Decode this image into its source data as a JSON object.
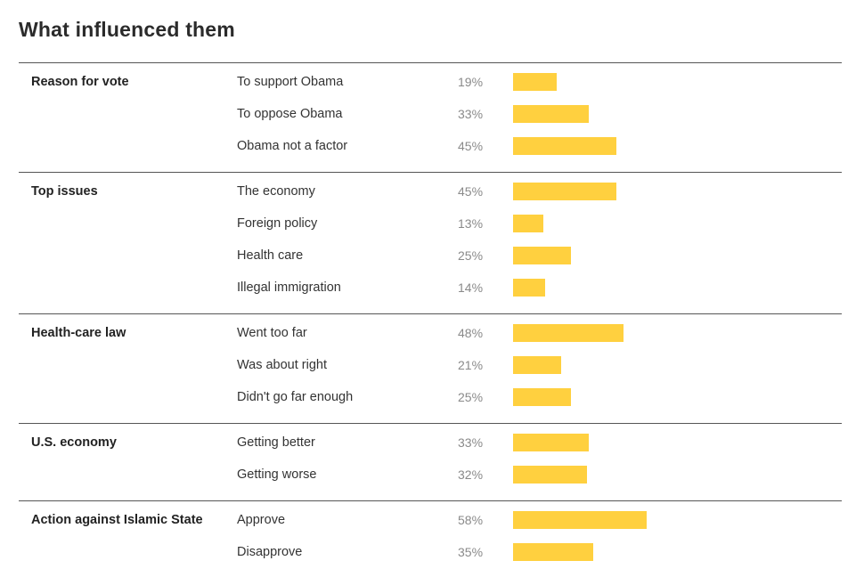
{
  "title": "What influenced them",
  "colors": {
    "bar": "#ffd03f",
    "rule": "#555555",
    "pct": "#8a8a8a"
  },
  "chart_data": {
    "type": "bar",
    "orientation": "horizontal",
    "title": "What influenced them",
    "unit": "%",
    "xlim": [
      0,
      100
    ],
    "groups": [
      {
        "name": "Reason for vote",
        "items": [
          {
            "label": "To support Obama",
            "value": 19,
            "display": "19%"
          },
          {
            "label": "To oppose Obama",
            "value": 33,
            "display": "33%"
          },
          {
            "label": "Obama not a factor",
            "value": 45,
            "display": "45%"
          }
        ]
      },
      {
        "name": "Top issues",
        "items": [
          {
            "label": "The economy",
            "value": 45,
            "display": "45%"
          },
          {
            "label": "Foreign policy",
            "value": 13,
            "display": "13%"
          },
          {
            "label": "Health care",
            "value": 25,
            "display": "25%"
          },
          {
            "label": "Illegal immigration",
            "value": 14,
            "display": "14%"
          }
        ]
      },
      {
        "name": "Health-care law",
        "items": [
          {
            "label": "Went too far",
            "value": 48,
            "display": "48%"
          },
          {
            "label": "Was about right",
            "value": 21,
            "display": "21%"
          },
          {
            "label": "Didn't go far enough",
            "value": 25,
            "display": "25%"
          }
        ]
      },
      {
        "name": "U.S. economy",
        "items": [
          {
            "label": "Getting better",
            "value": 33,
            "display": "33%"
          },
          {
            "label": "Getting worse",
            "value": 32,
            "display": "32%"
          }
        ]
      },
      {
        "name": "Action against Islamic State",
        "items": [
          {
            "label": "Approve",
            "value": 58,
            "display": "58%"
          },
          {
            "label": "Disapprove",
            "value": 35,
            "display": "35%"
          }
        ]
      }
    ]
  }
}
